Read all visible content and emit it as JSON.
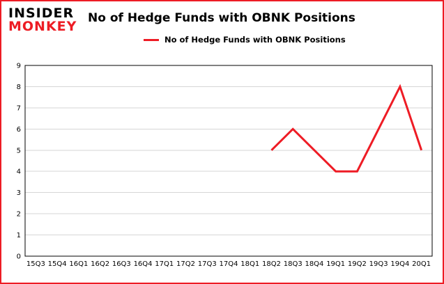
{
  "header": {
    "logo": {
      "line1": "INSIDER",
      "line2": "MONKEY"
    },
    "title": "No of Hedge Funds with OBNK Positions"
  },
  "legend": {
    "label": "No of Hedge Funds with OBNK Positions"
  },
  "colors": {
    "line": "#ee1c25",
    "border": "#ed1c24",
    "grid": "#d6d6d6",
    "axis": "#000000",
    "logo_red": "#ed1c24"
  },
  "chart_data": {
    "type": "line",
    "title": "No of Hedge Funds with OBNK Positions",
    "categories": [
      "15Q3",
      "15Q4",
      "16Q1",
      "16Q2",
      "16Q3",
      "16Q4",
      "17Q1",
      "17Q2",
      "17Q3",
      "17Q4",
      "18Q1",
      "18Q2",
      "18Q3",
      "18Q4",
      "19Q1",
      "19Q2",
      "19Q3",
      "19Q4",
      "20Q1"
    ],
    "series": [
      {
        "name": "No of Hedge Funds with OBNK Positions",
        "color": "#ee1c25",
        "values": [
          null,
          null,
          null,
          null,
          null,
          null,
          null,
          null,
          null,
          null,
          null,
          5,
          6,
          5,
          4,
          4,
          6,
          8,
          5
        ]
      }
    ],
    "ylim": [
      0,
      9
    ],
    "ytick_step": 1,
    "grid": "horizontal",
    "legend_position": "top"
  }
}
